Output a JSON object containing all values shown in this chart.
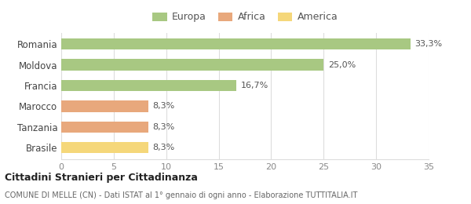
{
  "categories": [
    "Romania",
    "Moldova",
    "Francia",
    "Marocco",
    "Tanzania",
    "Brasile"
  ],
  "values": [
    33.3,
    25.0,
    16.7,
    8.3,
    8.3,
    8.3
  ],
  "labels": [
    "33,3%",
    "25,0%",
    "16,7%",
    "8,3%",
    "8,3%",
    "8,3%"
  ],
  "bar_colors": [
    "#a8c882",
    "#a8c882",
    "#a8c882",
    "#e8a87c",
    "#e8a87c",
    "#f5d77a"
  ],
  "legend_items": [
    {
      "label": "Europa",
      "color": "#a8c882"
    },
    {
      "label": "Africa",
      "color": "#e8a87c"
    },
    {
      "label": "America",
      "color": "#f5d77a"
    }
  ],
  "xlim": [
    0,
    35
  ],
  "xticks": [
    0,
    5,
    10,
    15,
    20,
    25,
    30,
    35
  ],
  "title_bold": "Cittadini Stranieri per Cittadinanza",
  "subtitle": "COMUNE DI MELLE (CN) - Dati ISTAT al 1° gennaio di ogni anno - Elaborazione TUTTITALIA.IT",
  "background_color": "#ffffff",
  "grid_color": "#dddddd"
}
